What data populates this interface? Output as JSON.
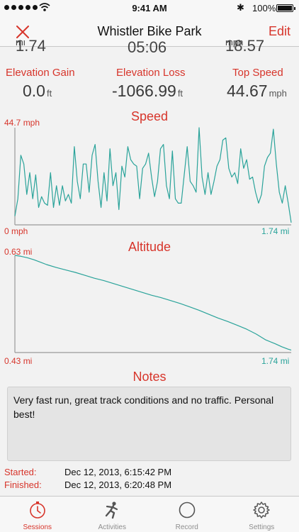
{
  "status_bar": {
    "time": "9:41 AM",
    "battery": "100%",
    "battery_level": 1.0
  },
  "navbar": {
    "title": "Whistler Bike Park",
    "edit_label": "Edit"
  },
  "top_stats_partial": [
    {
      "value": "1.74",
      "unit": "mi"
    },
    {
      "value": "05:06",
      "unit": ""
    },
    {
      "value": "18.57",
      "unit": "mph"
    }
  ],
  "stats": [
    {
      "label": "Elevation Gain",
      "value": "0.0",
      "unit": "ft"
    },
    {
      "label": "Elevation Loss",
      "value": "-1066.99",
      "unit": "ft"
    },
    {
      "label": "Top Speed",
      "value": "44.67",
      "unit": "mph"
    }
  ],
  "speed_section": {
    "title": "Speed",
    "y_max_label": "44.7 mph",
    "y_min_label": "0 mph",
    "x_end_label": "1.74 mi"
  },
  "altitude_section": {
    "title": "Altitude",
    "y_max_label": "0.63 mi",
    "y_min_label": "0.43 mi",
    "x_end_label": "1.74 mi"
  },
  "chart_data": [
    {
      "type": "line",
      "title": "Speed",
      "color": "#2aa39a",
      "xlim": [
        0,
        1.74
      ],
      "ylim": [
        0,
        44.7
      ],
      "x_unit": "mi",
      "y_unit": "mph",
      "values": [
        4,
        12,
        32,
        28,
        14,
        24,
        12,
        23,
        8,
        13,
        10,
        9,
        24,
        8,
        18,
        9,
        18,
        11,
        14,
        10,
        36,
        20,
        12,
        28,
        28,
        15,
        32,
        37,
        20,
        8,
        24,
        11,
        35,
        18,
        24,
        7,
        27,
        22,
        36,
        30,
        28,
        27,
        12,
        26,
        28,
        33,
        22,
        13,
        20,
        35,
        37,
        18,
        12,
        34,
        12,
        10,
        10,
        23,
        36,
        20,
        18,
        15,
        44.7,
        22,
        14,
        24,
        14,
        20,
        27,
        30,
        39,
        40,
        26,
        22,
        24,
        19,
        35,
        26,
        30,
        21,
        22,
        15,
        10,
        14,
        27,
        31,
        33,
        44,
        28,
        15,
        10,
        18,
        10,
        1
      ]
    },
    {
      "type": "line",
      "title": "Altitude",
      "color": "#2aa39a",
      "xlim": [
        0,
        1.74
      ],
      "ylim": [
        0.43,
        0.63
      ],
      "x_unit": "mi",
      "y_unit": "mi",
      "x": [
        0,
        0.04,
        0.08,
        0.12,
        0.16,
        0.2,
        0.26,
        0.32,
        0.38,
        0.44,
        0.5,
        0.56,
        0.62,
        0.68,
        0.74,
        0.8,
        0.86,
        0.92,
        0.98,
        1.04,
        1.1,
        1.16,
        1.22,
        1.28,
        1.34,
        1.4,
        1.46,
        1.52,
        1.58,
        1.64,
        1.68,
        1.72,
        1.74
      ],
      "values": [
        0.63,
        0.628,
        0.625,
        0.621,
        0.616,
        0.611,
        0.605,
        0.6,
        0.595,
        0.589,
        0.583,
        0.578,
        0.572,
        0.566,
        0.56,
        0.554,
        0.548,
        0.543,
        0.537,
        0.531,
        0.524,
        0.517,
        0.509,
        0.501,
        0.494,
        0.486,
        0.478,
        0.468,
        0.456,
        0.448,
        0.442,
        0.437,
        0.435
      ]
    }
  ],
  "notes": {
    "title": "Notes",
    "text": "Very fast run, great track conditions and no traffic. Personal best!"
  },
  "session_times": {
    "started_label": "Started:",
    "started_value": "Dec 12, 2013, 6:15:42 PM",
    "finished_label": "Finished:",
    "finished_value": "Dec 12, 2013, 6:20:48 PM"
  },
  "tabs": [
    {
      "label": "Sessions",
      "icon": "stopwatch-icon",
      "active": true
    },
    {
      "label": "Activities",
      "icon": "runner-icon",
      "active": false
    },
    {
      "label": "Record",
      "icon": "record-circle-icon",
      "active": false
    },
    {
      "label": "Settings",
      "icon": "gear-icon",
      "active": false
    }
  ],
  "colors": {
    "accent": "#d7352b",
    "line": "#2aa39a",
    "inactive": "#8e8e8e"
  }
}
